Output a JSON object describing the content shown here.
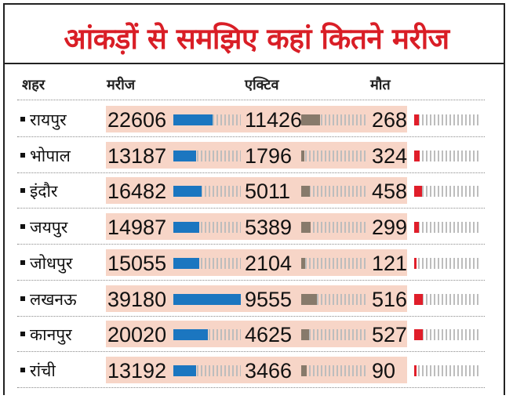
{
  "title": "आंकड़ों से समझिए कहां कितने मरीज",
  "colors": {
    "title": "#d91e26",
    "band": "#f7d5c7",
    "patients_bar": "#1b76c0",
    "active_bar": "#877a6b",
    "deaths_bar": "#e01e2a",
    "track": "#bdbdbd"
  },
  "chart_data": {
    "type": "table",
    "title": "आंकड़ों से समझिए कहां कितने मरीज",
    "columns": [
      "शहर",
      "मरीज",
      "एक्टिव",
      "मौत"
    ],
    "rows": [
      {
        "city": "रायपुर",
        "patients": 22606,
        "active": 11426,
        "deaths": 268
      },
      {
        "city": "भोपाल",
        "patients": 13187,
        "active": 1796,
        "deaths": 324
      },
      {
        "city": "इंदौर",
        "patients": 16482,
        "active": 5011,
        "deaths": 458
      },
      {
        "city": "जयपुर",
        "patients": 14987,
        "active": 5389,
        "deaths": 299
      },
      {
        "city": "जोधपुर",
        "patients": 15055,
        "active": 2104,
        "deaths": 121
      },
      {
        "city": "लखनऊ",
        "patients": 39180,
        "active": 9555,
        "deaths": 516
      },
      {
        "city": "कानपुर",
        "patients": 20020,
        "active": 4625,
        "deaths": 527
      },
      {
        "city": "रांची",
        "patients": 13192,
        "active": 3466,
        "deaths": 90
      }
    ],
    "bar_max": {
      "patients": 39180,
      "active": 39180,
      "deaths": 3918
    }
  }
}
